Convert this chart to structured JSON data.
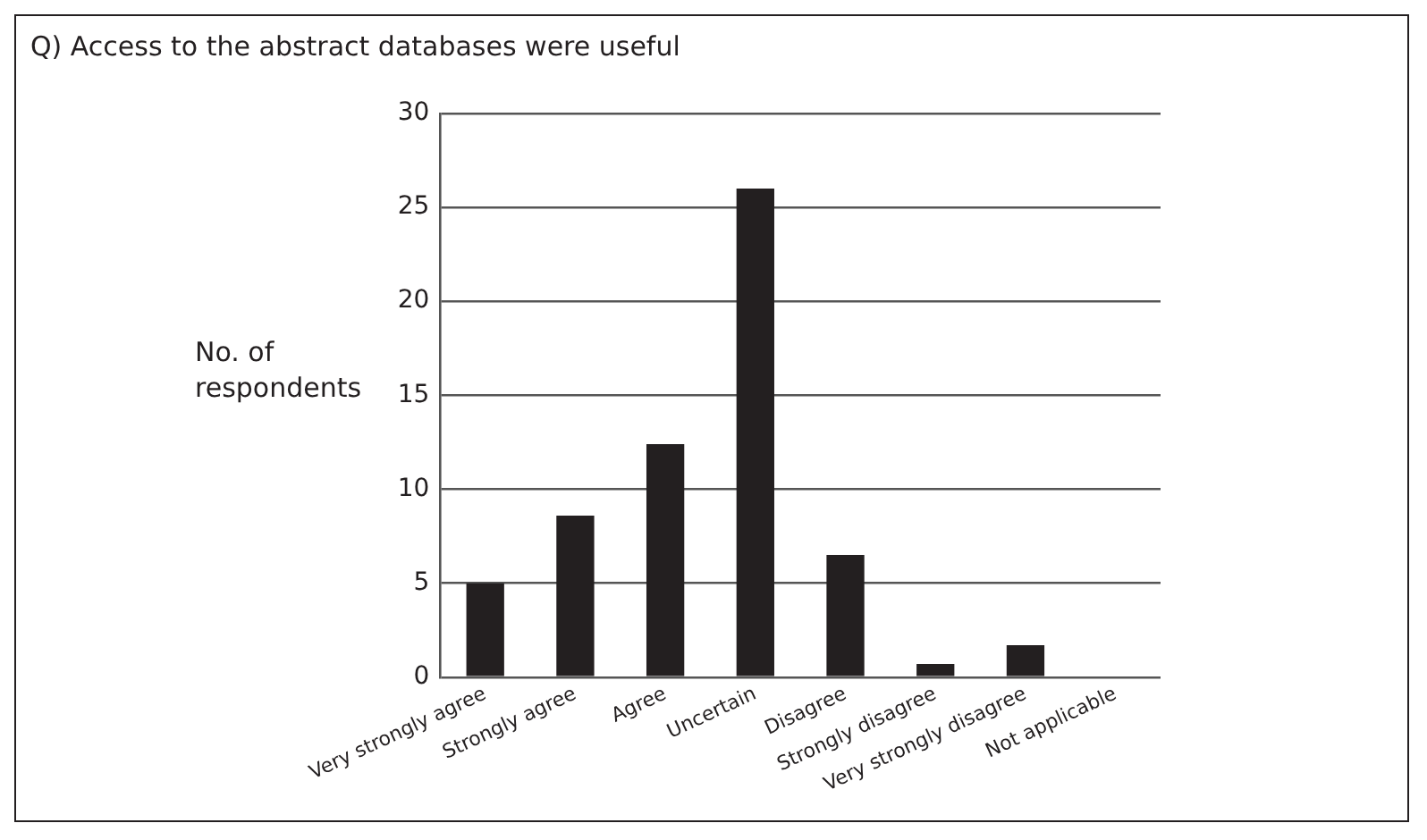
{
  "chart_data": {
    "type": "bar",
    "title": "Q) Access to the abstract databases were useful",
    "ylabel": "No. of respondents",
    "categories": [
      "Very strongly agree",
      "Strongly agree",
      "Agree",
      "Uncertain",
      "Disagree",
      "Strongly disagree",
      "Very strongly disagree",
      "Not applicable"
    ],
    "values": [
      5,
      8.6,
      12.4,
      26,
      6.5,
      0.7,
      1.7,
      0
    ],
    "color": "#231f20",
    "ylim": [
      0,
      30
    ],
    "yticks": [
      0,
      5,
      10,
      15,
      20,
      25,
      30
    ],
    "grid": "y"
  }
}
